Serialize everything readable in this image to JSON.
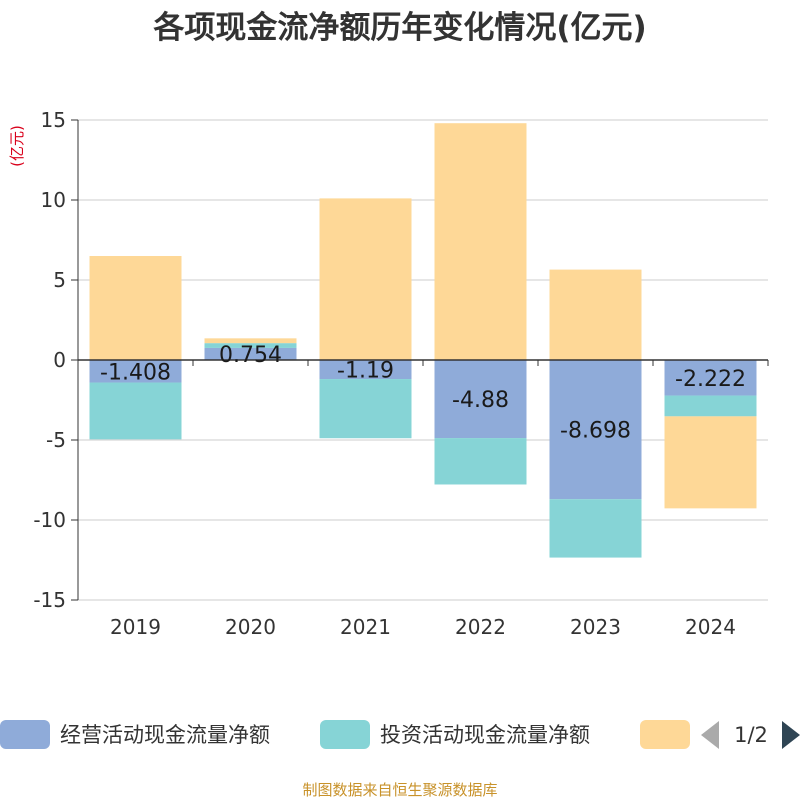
{
  "chart_data": {
    "type": "bar",
    "stacked": true,
    "title": "各项现金流净额历年变化情况(亿元)",
    "ylabel": "(亿元)",
    "xlabel": "",
    "ylim": [
      -15,
      15
    ],
    "yticks": [
      15,
      10,
      5,
      0,
      -5,
      -10,
      -15
    ],
    "grid": true,
    "categories": [
      "2019",
      "2020",
      "2021",
      "2022",
      "2023",
      "2024"
    ],
    "series": [
      {
        "name": "经营活动现金流量净额",
        "color": "#8fabd9",
        "values": [
          -1.408,
          0.754,
          -1.19,
          -4.88,
          -8.698,
          -2.222
        ],
        "show_labels": true
      },
      {
        "name": "投资活动现金流量净额",
        "color": "#86d4d6",
        "values": [
          -3.55,
          0.3,
          -3.7,
          -2.9,
          -3.65,
          -1.3
        ],
        "show_labels": false
      },
      {
        "name": "",
        "color": "#fed897",
        "values": [
          6.5,
          0.3,
          10.1,
          14.8,
          5.65,
          -5.75
        ],
        "show_labels": false
      }
    ],
    "legend": {
      "position": "bottom",
      "page": "1/2"
    }
  },
  "source": "制图数据来自恒生聚源数据库"
}
